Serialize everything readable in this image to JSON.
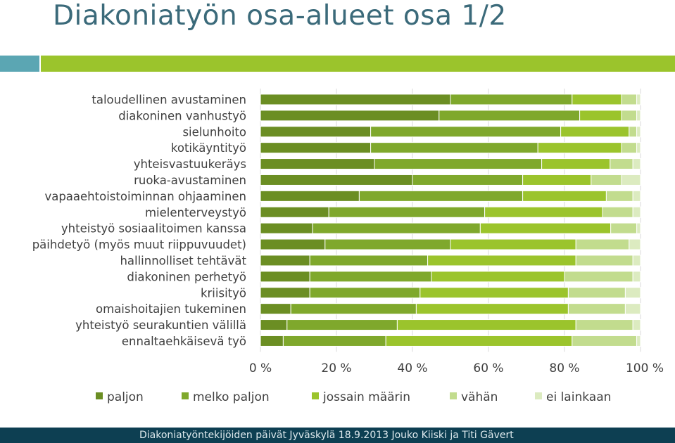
{
  "title": "Diakoniatyön osa-alueet osa 1/2",
  "footer": {
    "text": "Diakoniatyöntekijöiden päivät Jyväskylä 18.9.2013  Jouko Kiiski ja Titi Gävert"
  },
  "colors": {
    "title": "#3b6a7a",
    "band_teal": "#5ba6b3",
    "band_green": "#9bc42c",
    "footer_bg": "#0d3f52"
  },
  "chart_data": {
    "type": "bar",
    "orientation": "horizontal",
    "stacked": "percent",
    "title": "",
    "xlabel": "",
    "ylabel": "",
    "xlim": [
      0,
      100
    ],
    "x_ticks": [
      "0 %",
      "20 %",
      "40 %",
      "60 %",
      "80 %",
      "100 %"
    ],
    "legend_position": "bottom",
    "grid": true,
    "categories": [
      "taloudellinen avustaminen",
      "diakoninen vanhustyö",
      "sielunhoito",
      "kotikäyntityö",
      "yhteisvastuukeräys",
      "ruoka-avustaminen",
      "vapaaehtoistoiminnan ohjaaminen",
      "mielenterveystyö",
      "yhteistyö sosiaalitoimen kanssa",
      "päihdetyö (myös muut riippuvuudet)",
      "hallinnolliset tehtävät",
      "diakoninen perhetyö",
      "kriisityö",
      "omaishoitajien tukeminen",
      "yhteistyö seurakuntien välillä",
      "ennaltaehkäisevä työ"
    ],
    "series": [
      {
        "name": "paljon",
        "color": "#6b8e23",
        "values": [
          50,
          47,
          29,
          29,
          30,
          40,
          26,
          18,
          14,
          17,
          13,
          13,
          13,
          8,
          7,
          6
        ]
      },
      {
        "name": "melko paljon",
        "color": "#7fa82c",
        "values": [
          32,
          37,
          50,
          44,
          44,
          29,
          43,
          41,
          45,
          33,
          31,
          32,
          29,
          33,
          29,
          27
        ]
      },
      {
        "name": "jossain määrin",
        "color": "#9bc42c",
        "values": [
          13,
          11,
          18,
          22,
          18,
          18,
          22,
          31,
          35,
          33,
          39,
          35,
          39,
          40,
          47,
          49
        ]
      },
      {
        "name": "vähän",
        "color": "#c2dc8e",
        "values": [
          4,
          4,
          2,
          4,
          6,
          8,
          7,
          8,
          7,
          14,
          15,
          18,
          15,
          15,
          15,
          17
        ]
      },
      {
        "name": "ei lainkaan",
        "color": "#dcebc0",
        "values": [
          1,
          1,
          1,
          1,
          2,
          5,
          2,
          2,
          1,
          3,
          2,
          2,
          4,
          4,
          2,
          1
        ]
      }
    ]
  }
}
